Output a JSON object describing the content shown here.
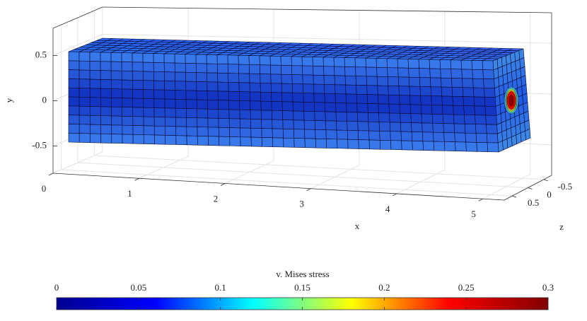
{
  "chart_data": {
    "type": "surface",
    "xlabel": "x",
    "ylabel": "y",
    "zlabel": "z",
    "xlim": [
      0,
      5.25
    ],
    "xticks": [
      0,
      1,
      2,
      3,
      4,
      5
    ],
    "ylim": [
      -0.8,
      0.8
    ],
    "yticks": [
      -0.5,
      0,
      0.5
    ],
    "zlim": [
      -0.75,
      0.75
    ],
    "zticks": [
      -0.5,
      0,
      0.5
    ],
    "grid": true,
    "colorbar": {
      "label": "v. Mises stress",
      "clim": [
        0,
        0.3
      ],
      "ticks": [
        0,
        0.05,
        0.1,
        0.15,
        0.2,
        0.25,
        0.3
      ],
      "colormap": [
        "#00008f",
        "#0000ff",
        "#00ffff",
        "#ffff00",
        "#ff0000",
        "#800000"
      ]
    }
  }
}
